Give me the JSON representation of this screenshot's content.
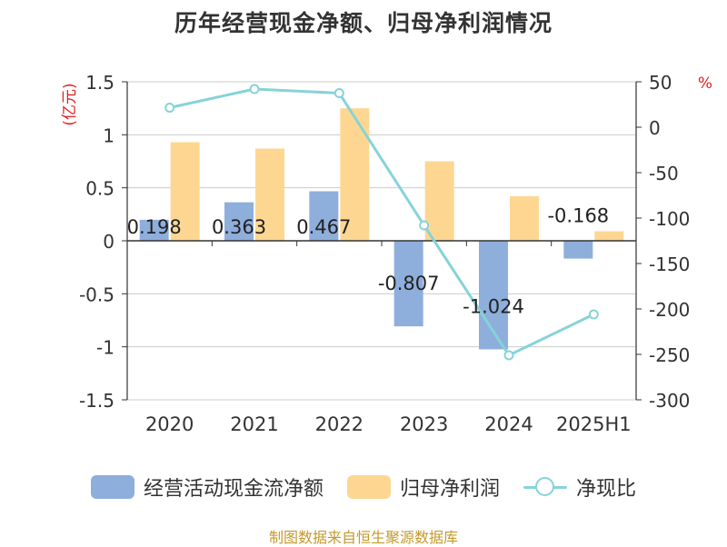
{
  "title": "历年经营现金净额、归母净利润情况",
  "source": "制图数据来自恒生聚源数据库",
  "colors": {
    "cash": "#8eaedc",
    "profit": "#fdd792",
    "ratio": "#86d3d9",
    "axis": "#333333",
    "grid": "#cccccc",
    "unit": "#e02020"
  },
  "legend": {
    "cash": "经营活动现金流净额",
    "profit": "归母净利润",
    "ratio": "净现比"
  },
  "chart_data": {
    "type": "bar",
    "categories": [
      "2020",
      "2021",
      "2022",
      "2023",
      "2024",
      "2025H1"
    ],
    "left_axis": {
      "unit": "(亿元)",
      "min": -1.5,
      "max": 1.5,
      "ticks": [
        1.5,
        1,
        0.5,
        0,
        -0.5,
        -1,
        -1.5
      ],
      "tick_labels": [
        "1.5",
        "1",
        "0.5",
        "0",
        "-0.5",
        "-1",
        "-1.5"
      ]
    },
    "right_axis": {
      "unit": "%",
      "min": -300,
      "max": 50,
      "ticks": [
        50,
        0,
        -50,
        -100,
        -150,
        -200,
        -250,
        -300
      ],
      "tick_labels": [
        "50",
        "0",
        "-50",
        "-100",
        "-150",
        "-200",
        "-250",
        "-300"
      ]
    },
    "series": [
      {
        "name": "经营活动现金流净额",
        "type": "bar",
        "axis": "left",
        "values": [
          0.198,
          0.363,
          0.467,
          -0.807,
          -1.024,
          -0.168
        ],
        "labels": [
          "0.198",
          "0.363",
          "0.467",
          "-0.807",
          "-1.024",
          "-0.168"
        ]
      },
      {
        "name": "归母净利润",
        "type": "bar",
        "axis": "left",
        "values": [
          0.93,
          0.87,
          1.25,
          0.75,
          0.42,
          0.09
        ]
      },
      {
        "name": "净现比",
        "type": "line",
        "axis": "right",
        "values": [
          21.5,
          42,
          37.5,
          -108,
          -251,
          -206
        ]
      }
    ],
    "grid": true,
    "legend_position": "bottom"
  }
}
